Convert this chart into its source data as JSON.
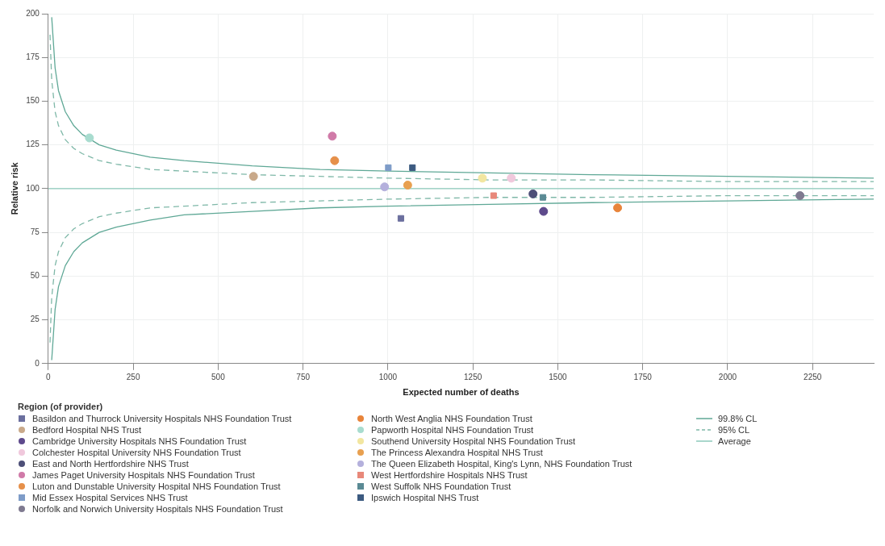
{
  "chart_data": {
    "type": "scatter",
    "xlabel": "Expected number of deaths",
    "ylabel": "Relative risk",
    "legend_title": "Region (of provider)",
    "legend": "bottom",
    "grid": true,
    "xlim": [
      0,
      2430
    ],
    "xticks": [
      0,
      250,
      500,
      750,
      1000,
      1250,
      1500,
      1750,
      2000,
      2250
    ],
    "ylim": [
      0,
      200
    ],
    "yticks": [
      0,
      25,
      50,
      75,
      100,
      125,
      150,
      175,
      200
    ],
    "series": [
      {
        "name": "Basildon and Thurrock University Hospitals NHS Foundation Trust",
        "color": "#6b6f9e",
        "marker": "square",
        "x": [
          1038
        ],
        "values": [
          83
        ]
      },
      {
        "name": "Bedford Hospital NHS Trust",
        "color": "#c9a98a",
        "marker": "circle",
        "x": [
          604
        ],
        "values": [
          107
        ]
      },
      {
        "name": "Cambridge University Hospitals NHS Foundation Trust",
        "color": "#5e4a8c",
        "marker": "circle",
        "x": [
          1458
        ],
        "values": [
          87
        ]
      },
      {
        "name": "Colchester Hospital University NHS Foundation Trust",
        "color": "#f0c8dc",
        "marker": "circle",
        "x": [
          1363
        ],
        "values": [
          106
        ]
      },
      {
        "name": "East and North Hertfordshire NHS Trust",
        "color": "#4d4f78",
        "marker": "circle",
        "x": [
          1427
        ],
        "values": [
          97
        ]
      },
      {
        "name": "James Paget University Hospitals NHS Foundation Trust",
        "color": "#d07aa8",
        "marker": "circle",
        "x": [
          836
        ],
        "values": [
          130
        ]
      },
      {
        "name": "Luton and Dunstable University Hospital NHS Foundation Trust",
        "color": "#e6904a",
        "marker": "circle",
        "x": [
          843
        ],
        "values": [
          116
        ]
      },
      {
        "name": "Mid Essex Hospital Services NHS Trust",
        "color": "#7e9cc8",
        "marker": "square",
        "x": [
          1001
        ],
        "values": [
          112
        ]
      },
      {
        "name": "Norfolk and Norwich University Hospitals NHS Foundation Trust",
        "color": "#7f7a90",
        "marker": "circle",
        "x": [
          2213
        ],
        "values": [
          96
        ]
      },
      {
        "name": "North West Anglia NHS Foundation Trust",
        "color": "#e8843a",
        "marker": "circle",
        "x": [
          1676
        ],
        "values": [
          89
        ]
      },
      {
        "name": "Papworth Hospital NHS Foundation Trust",
        "color": "#a8dccf",
        "marker": "circle",
        "x": [
          121
        ],
        "values": [
          129
        ]
      },
      {
        "name": "Southend University Hospital NHS Foundation Trust",
        "color": "#f2e6a0",
        "marker": "circle",
        "x": [
          1278
        ],
        "values": [
          106
        ]
      },
      {
        "name": "The Princess Alexandra Hospital NHS Trust",
        "color": "#e8a050",
        "marker": "circle",
        "x": [
          1058
        ],
        "values": [
          102
        ]
      },
      {
        "name": "The Queen Elizabeth Hospital, King's Lynn, NHS Foundation Trust",
        "color": "#b4b0dc",
        "marker": "circle",
        "x": [
          990
        ],
        "values": [
          101
        ]
      },
      {
        "name": "West Hertfordshire Hospitals NHS Trust",
        "color": "#e8887a",
        "marker": "square",
        "x": [
          1311
        ],
        "values": [
          96
        ]
      },
      {
        "name": "West Suffolk NHS Foundation Trust",
        "color": "#5a8a94",
        "marker": "square",
        "x": [
          1456
        ],
        "values": [
          95
        ]
      },
      {
        "name": "Ipswich Hospital NHS Trust",
        "color": "#3c5a80",
        "marker": "square",
        "x": [
          1072
        ],
        "values": [
          112
        ]
      },
      {
        "name": "99.8% CL",
        "type": "line",
        "color": "#5fa896",
        "line_style": "solid",
        "marker": "none",
        "x": [
          10,
          20,
          30,
          50,
          75,
          100,
          150,
          200,
          300,
          400,
          600,
          800,
          1000,
          1300,
          1600,
          2000,
          2430
        ],
        "values": [
          198,
          169,
          156,
          144,
          136,
          131,
          125,
          122,
          118,
          116,
          113,
          111,
          110,
          109,
          108,
          107,
          106
        ]
      },
      {
        "type": "line",
        "color": "#5fa896",
        "line_style": "solid",
        "marker": "none",
        "x": [
          10,
          20,
          30,
          50,
          75,
          100,
          150,
          200,
          300,
          400,
          600,
          800,
          1000,
          1300,
          1600,
          2000,
          2430
        ],
        "values": [
          2,
          31,
          44,
          56,
          64,
          69,
          75,
          78,
          82,
          85,
          87,
          89,
          90,
          91,
          92,
          93,
          94
        ]
      },
      {
        "name": "95% CL",
        "type": "line",
        "color": "#7fb8a8",
        "line_style": "dashed",
        "marker": "none",
        "x": [
          5,
          10,
          20,
          30,
          50,
          75,
          100,
          150,
          200,
          300,
          400,
          600,
          800,
          1000,
          1300,
          1600,
          2000,
          2430
        ],
        "values": [
          188,
          162,
          144,
          136,
          128,
          123,
          120,
          116,
          114,
          111,
          110,
          108,
          107,
          106,
          105,
          105,
          104,
          104
        ]
      },
      {
        "type": "line",
        "color": "#7fb8a8",
        "line_style": "dashed",
        "marker": "none",
        "x": [
          5,
          10,
          20,
          30,
          50,
          75,
          100,
          150,
          200,
          300,
          400,
          600,
          800,
          1000,
          1300,
          1600,
          2000,
          2430
        ],
        "values": [
          12,
          38,
          56,
          64,
          72,
          77,
          80,
          84,
          86,
          89,
          90,
          92,
          93,
          94,
          95,
          95,
          96,
          96
        ]
      },
      {
        "name": "Average",
        "type": "line",
        "color": "#8ccabb",
        "line_style": "solid",
        "marker": "none",
        "x": [
          0,
          2430
        ],
        "values": [
          100,
          100
        ]
      }
    ]
  }
}
